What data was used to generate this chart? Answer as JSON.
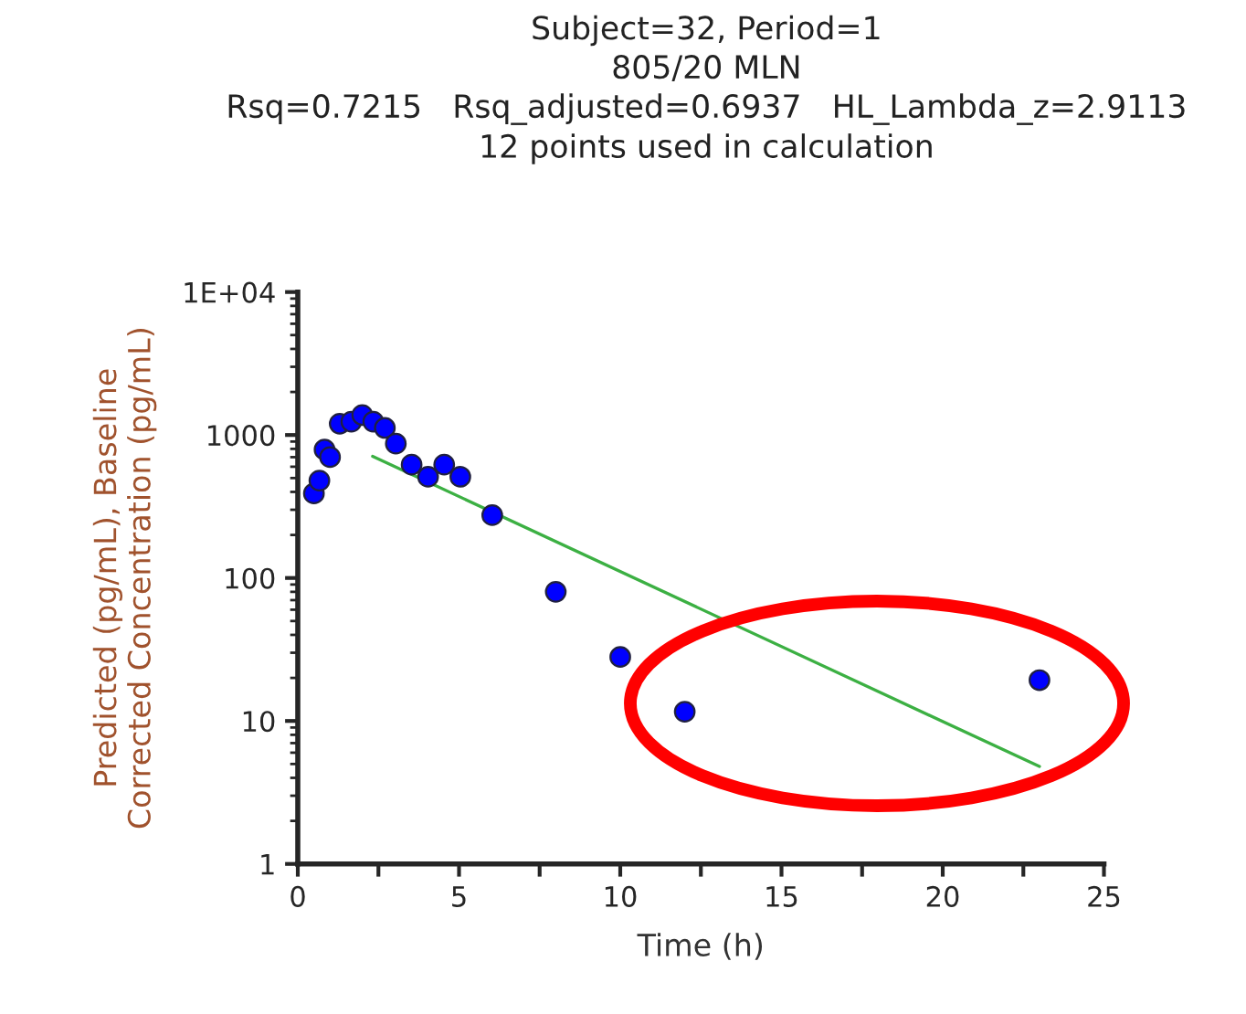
{
  "chart_data": {
    "type": "scatter",
    "title": "Subject=32, Period=1\n805/20 MLN\nRsq=0.7215   Rsq_adjusted=0.6937   HL_Lambda_z=2.9113\n12 points used in calculation",
    "xlabel": "Time (h)",
    "ylabel": "Predicted (pg/mL), Baseline\nCorrected Concentration (pg/mL)",
    "log": "y",
    "xlim": [
      0,
      25
    ],
    "ylim": [
      1,
      10000
    ],
    "xticks": [
      0,
      {
        "value": 2.5,
        "label": null
      },
      5,
      {
        "value": 7.5,
        "label": null
      },
      10,
      {
        "value": 12.5,
        "label": null
      },
      15,
      {
        "value": 17.5,
        "label": null
      },
      20,
      {
        "value": 22.5,
        "label": null
      },
      25
    ],
    "yticks": [
      1,
      10,
      100,
      1000,
      {
        "value": 10000,
        "label": "1E+04"
      }
    ],
    "grid": false,
    "legend": false,
    "marker": "circle",
    "series": [
      {
        "color": "#0000ff",
        "x": [
          0.5,
          0.67,
          0.83,
          1.0,
          1.3,
          1.66,
          2.0,
          2.34,
          2.7,
          3.04,
          3.53,
          4.04,
          4.54,
          5.04,
          6.03,
          8.0,
          10.0,
          12.0,
          23.0
        ],
        "values": [
          390,
          480,
          790,
          700,
          1200,
          1240,
          1380,
          1240,
          1120,
          870,
          620,
          510,
          620,
          510,
          275,
          80,
          28,
          11.6,
          19.3
        ]
      },
      {
        "type": "line",
        "color": "#3cb043",
        "marker": "none",
        "line_style": "solid",
        "x": [
          2.32,
          23.0
        ],
        "values": [
          710,
          4.8
        ]
      }
    ]
  }
}
